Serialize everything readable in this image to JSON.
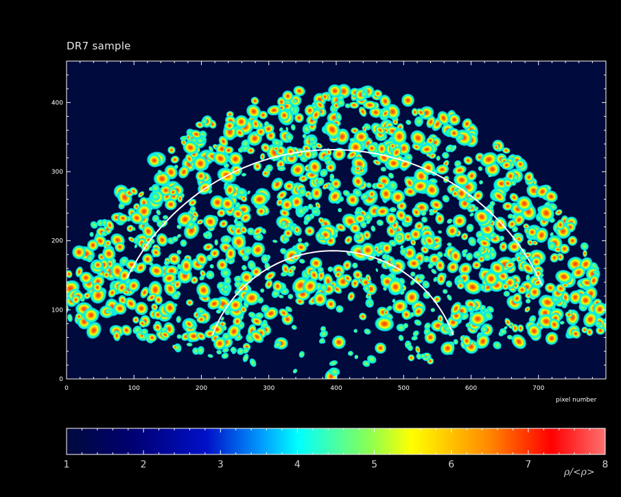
{
  "chart_data": {
    "type": "heatmap",
    "title": "DR7 sample",
    "xlabel": "pixel number",
    "ylabel": "",
    "xlim": [
      0,
      800
    ],
    "ylim": [
      0,
      460
    ],
    "x_ticks": [
      0,
      100,
      200,
      300,
      400,
      500,
      600,
      700
    ],
    "y_ticks": [
      0,
      100,
      200,
      300,
      400
    ],
    "fan_center": [
      395,
      0
    ],
    "fan_outer_radius": 420,
    "overlay_arcs": [
      {
        "center": [
          395,
          0
        ],
        "radius": 340,
        "theta_start_deg": 24,
        "theta_end_deg": 155
      },
      {
        "center": [
          395,
          0
        ],
        "radius": 190,
        "theta_start_deg": 20,
        "theta_end_deg": 160
      }
    ],
    "colorbar": {
      "label": "ρ/<ρ>",
      "range": [
        1,
        8
      ],
      "ticks": [
        1,
        2,
        3,
        4,
        5,
        6,
        7,
        8
      ],
      "colors": [
        "#000a3c",
        "#00009e",
        "#0055ff",
        "#00ffff",
        "#66ff66",
        "#ffff00",
        "#ff8800",
        "#ff0000",
        "#ff6a6a"
      ]
    }
  }
}
